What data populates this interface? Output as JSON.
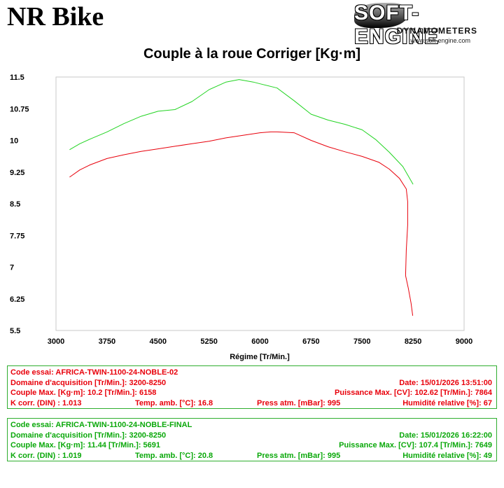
{
  "header": {
    "title": "NR Bike"
  },
  "logo": {
    "line1": "SOFT-ENGINE",
    "line2": "DYNAMOMETERS",
    "line3": "www.soft-engine.com"
  },
  "chart_data": {
    "type": "line",
    "title": "Couple à la roue Corriger [Kg·m]",
    "xlabel": "Régime [Tr/Min.]",
    "ylabel": "",
    "xlim": [
      3000,
      9000
    ],
    "ylim": [
      5.5,
      11.5
    ],
    "x_ticks": [
      "3000",
      "3750",
      "4500",
      "5250",
      "6000",
      "6750",
      "7500",
      "8250",
      "9000"
    ],
    "y_ticks": [
      "11.5",
      "10.75",
      "10",
      "9.25",
      "8.5",
      "7.75",
      "7",
      "6.25",
      "5.5"
    ],
    "grid": false,
    "series": [
      {
        "color": "#e8000b",
        "points": [
          [
            3200,
            9.13
          ],
          [
            3350,
            9.3
          ],
          [
            3500,
            9.42
          ],
          [
            3750,
            9.57
          ],
          [
            4000,
            9.66
          ],
          [
            4250,
            9.74
          ],
          [
            4500,
            9.8
          ],
          [
            4750,
            9.86
          ],
          [
            5000,
            9.92
          ],
          [
            5250,
            9.98
          ],
          [
            5500,
            10.06
          ],
          [
            5750,
            10.12
          ],
          [
            6000,
            10.18
          ],
          [
            6158,
            10.2
          ],
          [
            6250,
            10.2
          ],
          [
            6500,
            10.18
          ],
          [
            6750,
            10.0
          ],
          [
            7000,
            9.85
          ],
          [
            7250,
            9.73
          ],
          [
            7500,
            9.62
          ],
          [
            7750,
            9.48
          ],
          [
            7900,
            9.32
          ],
          [
            8050,
            9.1
          ],
          [
            8150,
            8.85
          ],
          [
            8170,
            8.55
          ],
          [
            8170,
            8.0
          ],
          [
            8150,
            7.4
          ],
          [
            8140,
            6.8
          ],
          [
            8180,
            6.5
          ],
          [
            8220,
            6.15
          ],
          [
            8245,
            5.85
          ]
        ]
      },
      {
        "color": "#22d422",
        "points": [
          [
            3200,
            9.78
          ],
          [
            3350,
            9.92
          ],
          [
            3500,
            10.03
          ],
          [
            3750,
            10.2
          ],
          [
            4000,
            10.4
          ],
          [
            4250,
            10.57
          ],
          [
            4500,
            10.69
          ],
          [
            4750,
            10.73
          ],
          [
            5000,
            10.92
          ],
          [
            5250,
            11.2
          ],
          [
            5500,
            11.38
          ],
          [
            5691,
            11.44
          ],
          [
            5900,
            11.38
          ],
          [
            6000,
            11.34
          ],
          [
            6250,
            11.24
          ],
          [
            6500,
            10.94
          ],
          [
            6750,
            10.62
          ],
          [
            7000,
            10.48
          ],
          [
            7250,
            10.38
          ],
          [
            7500,
            10.25
          ],
          [
            7700,
            10.02
          ],
          [
            7900,
            9.72
          ],
          [
            8100,
            9.38
          ],
          [
            8250,
            8.96
          ]
        ]
      }
    ]
  },
  "tests": [
    {
      "color": "#e8000b",
      "code": "Code essai: AFRICA-TWIN-1100-24-NOBLE-02",
      "domaine": "Domaine d'acquisition [Tr/Min.]: 3200-8250",
      "date": "Date: 15/01/2026   13:51:00",
      "couple": "Couple Max. [Kg·m]: 10.2   [Tr/Min.]: 6158",
      "puissance": "Puissance Max. [CV]: 102.62   [Tr/Min.]: 7864",
      "kcorr": "K corr. (DIN) : 1.013",
      "temp": "Temp. amb. [°C]: 16.8",
      "press": "Press atm. [mBar]: 995",
      "humid": "Humidité relative [%]: 67"
    },
    {
      "color": "#0aa80a",
      "code": "Code essai: AFRICA-TWIN-1100-24-NOBLE-FINAL",
      "domaine": "Domaine d'acquisition [Tr/Min.]: 3200-8250",
      "date": "Date: 15/01/2026   16:22:00",
      "couple": "Couple Max. [Kg·m]: 11.44   [Tr/Min.]: 5691",
      "puissance": "Puissance Max. [CV]: 107.4   [Tr/Min.]: 7649",
      "kcorr": "K corr. (DIN) : 1.019",
      "temp": "Temp. amb. [°C]: 20.8",
      "press": "Press atm. [mBar]: 995",
      "humid": "Humidité relative [%]: 49"
    }
  ]
}
